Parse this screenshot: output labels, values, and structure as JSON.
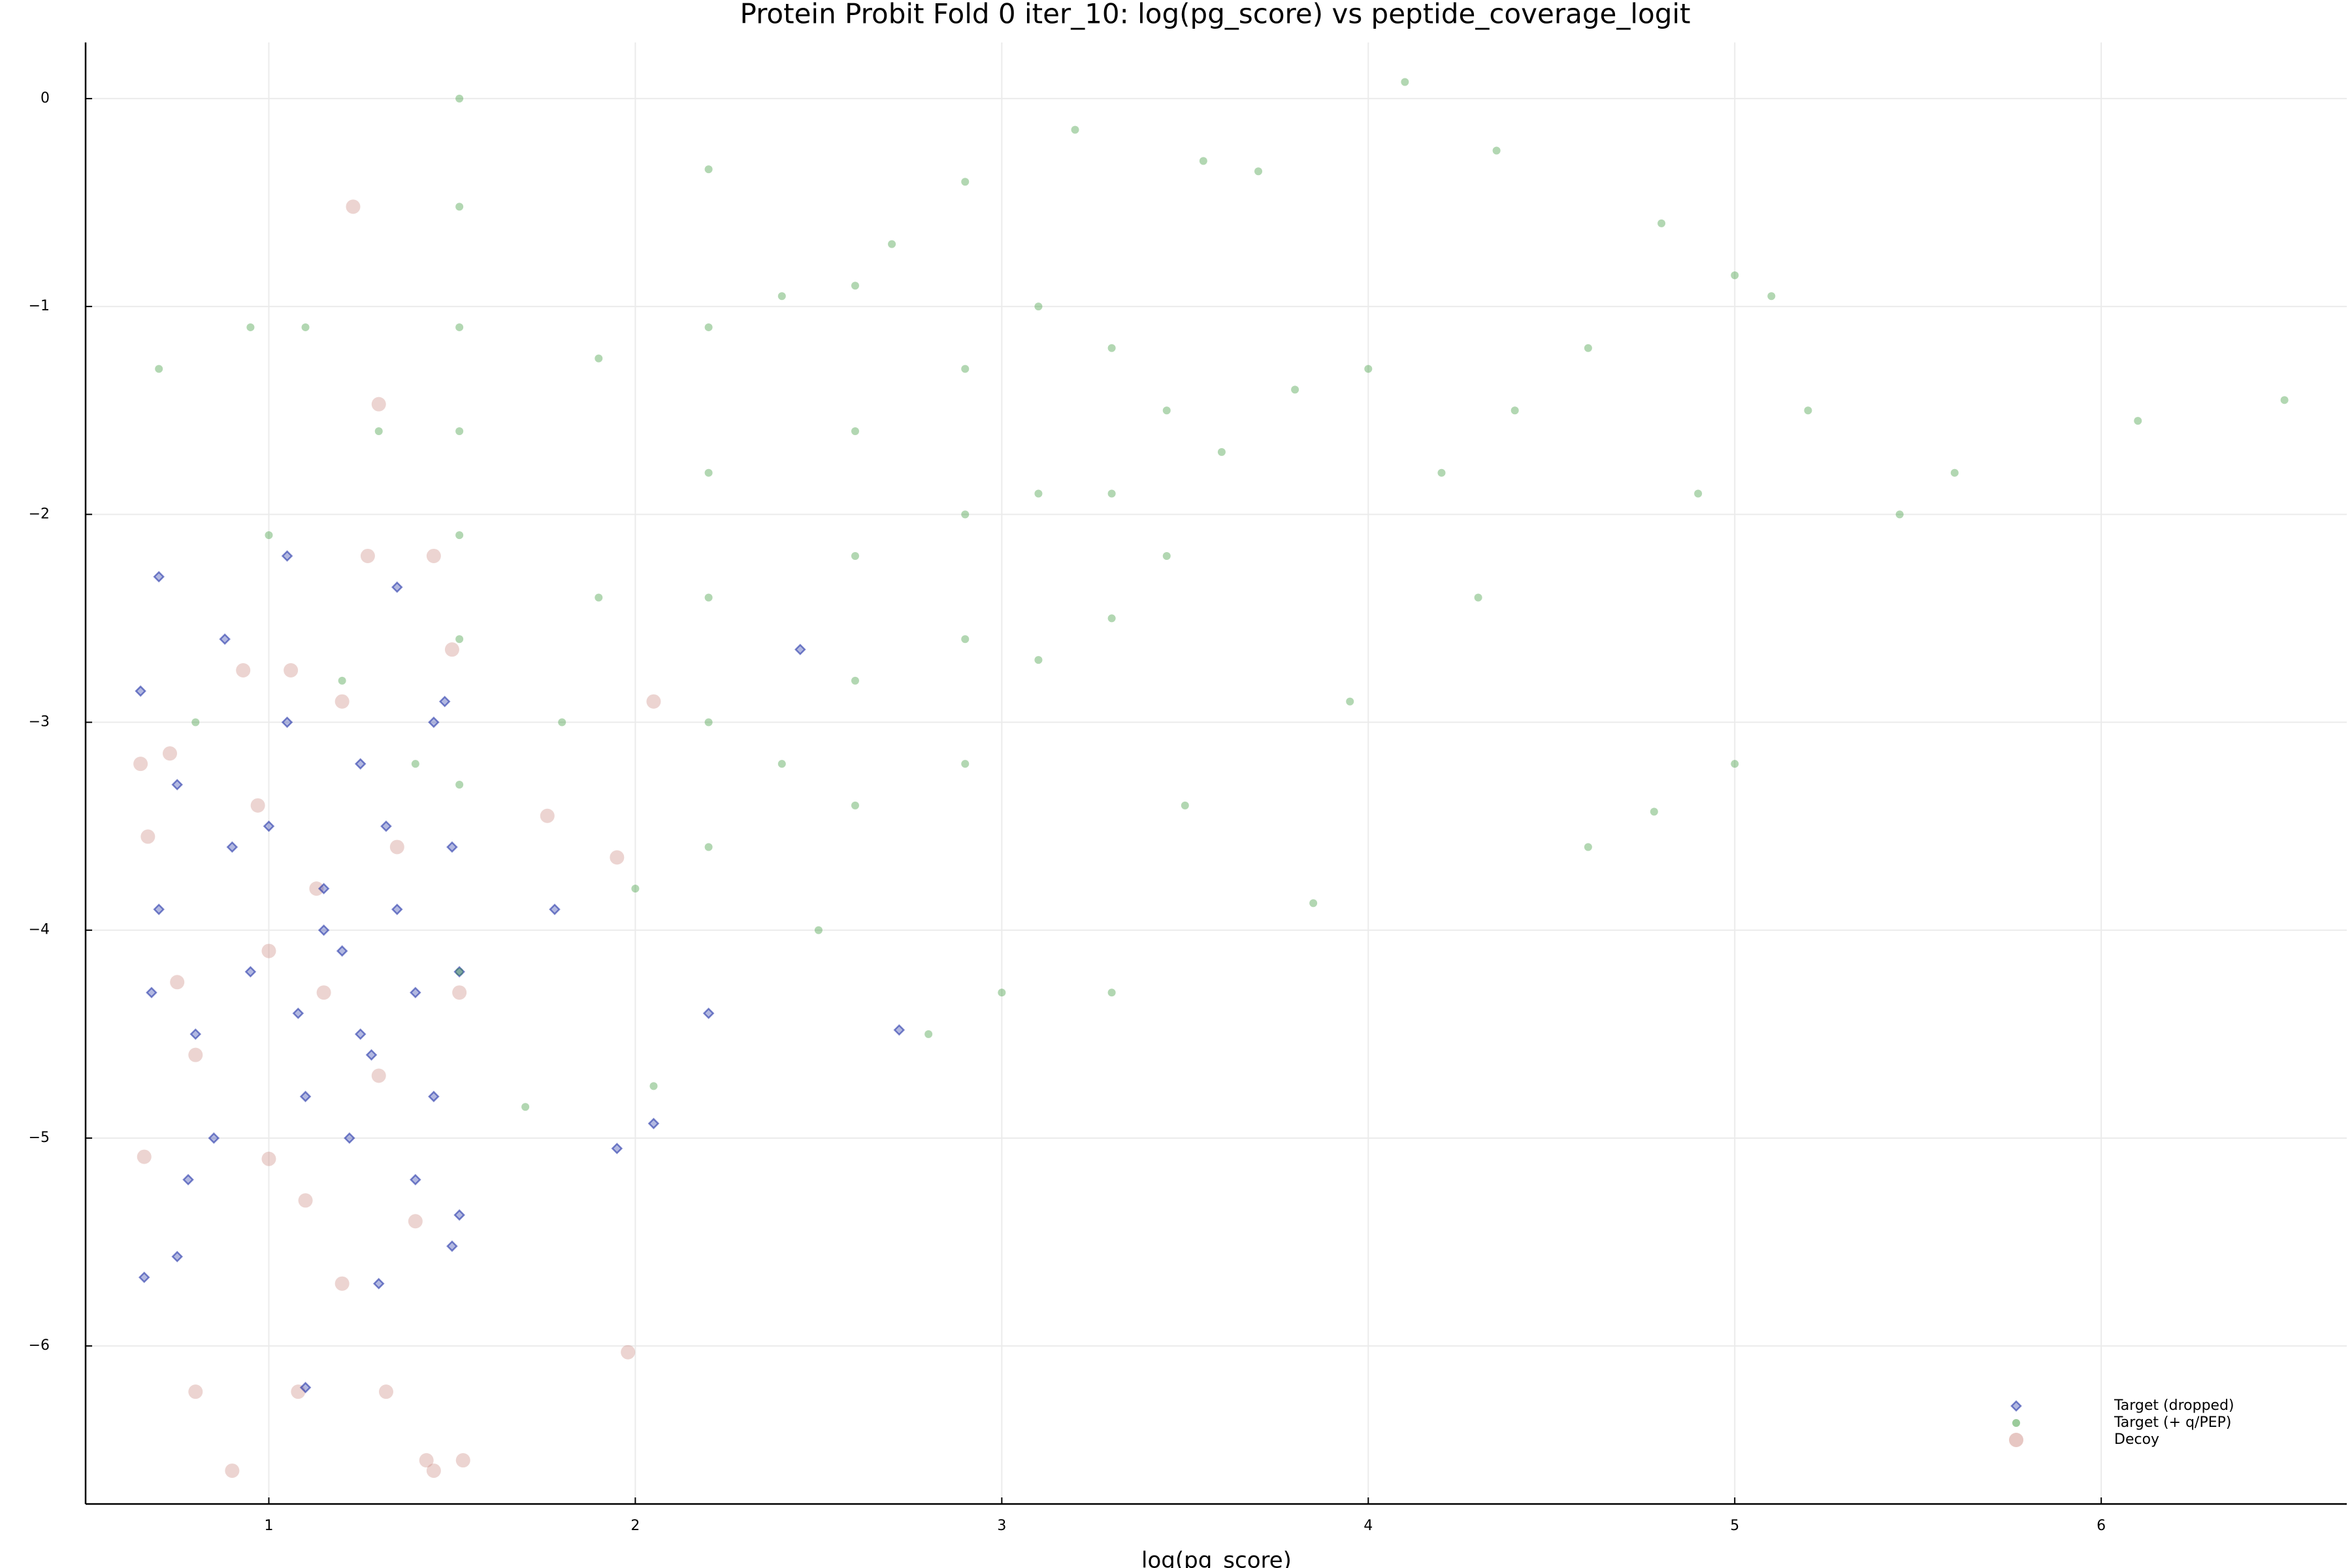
{
  "chart_data": {
    "type": "scatter",
    "title": "Protein Probit Fold 0 iter_10: log(pg_score) vs peptide_coverage_logit",
    "x_label": "log(pg_score)",
    "xlim": [
      0.5,
      6.67
    ],
    "ylim": [
      -6.76,
      0.27
    ],
    "xticks": [
      1,
      2,
      3,
      4,
      5,
      6
    ],
    "yticks": [
      {
        "value": -6,
        "label": "−6"
      },
      {
        "value": -5,
        "label": "−5"
      },
      {
        "value": -4,
        "label": "−4"
      },
      {
        "value": -3,
        "label": "−3"
      },
      {
        "value": -2,
        "label": "−2"
      },
      {
        "value": -1,
        "label": "−1"
      },
      0
    ],
    "grid": true,
    "legend_position": "bottom right",
    "series": [
      {
        "name": "Target (dropped)",
        "color": "#2334a8",
        "marker": "diamond",
        "x": [
          0.7,
          0.65,
          0.75,
          0.7,
          0.68,
          0.8,
          0.85,
          0.78,
          0.66,
          0.75,
          0.9,
          0.95,
          1.0,
          1.05,
          1.08,
          1.1,
          1.1,
          1.15,
          1.2,
          1.22,
          1.25,
          1.28,
          1.3,
          1.35,
          1.35,
          1.4,
          1.4,
          1.45,
          1.45,
          1.48,
          1.5,
          1.52,
          1.52,
          1.5,
          1.78,
          1.95,
          2.05,
          2.2,
          2.45,
          2.72,
          1.15,
          1.25,
          0.88,
          1.05,
          1.32
        ],
        "y": [
          -2.3,
          -2.85,
          -3.3,
          -3.9,
          -4.3,
          -4.5,
          -5.0,
          -5.2,
          -5.67,
          -5.57,
          -3.6,
          -4.2,
          -3.5,
          -2.2,
          -4.4,
          -4.8,
          -6.2,
          -3.8,
          -4.1,
          -5.0,
          -3.2,
          -4.6,
          -5.7,
          -2.35,
          -3.9,
          -4.3,
          -5.2,
          -3.0,
          -4.8,
          -2.9,
          -3.6,
          -4.2,
          -5.37,
          -5.52,
          -3.9,
          -5.05,
          -4.93,
          -4.4,
          -2.65,
          -4.48,
          -4.0,
          -4.5,
          -2.6,
          -3.0,
          -3.5
        ]
      },
      {
        "name": "Target (+ q/PEP)",
        "color": "#228b22",
        "marker": "circle",
        "x": [
          1.52,
          1.52,
          1.52,
          1.52,
          1.52,
          1.52,
          1.52,
          1.52,
          2.2,
          2.2,
          2.2,
          2.2,
          2.2,
          2.2,
          2.6,
          2.6,
          2.6,
          2.6,
          2.6,
          2.9,
          2.9,
          2.9,
          2.9,
          2.9,
          3.1,
          3.1,
          3.1,
          3.3,
          3.3,
          3.3,
          3.45,
          3.45,
          3.6,
          3.8,
          4.0,
          4.1,
          4.2,
          4.35,
          4.4,
          4.6,
          4.8,
          5.0,
          5.1,
          5.45,
          5.6,
          6.1,
          6.5,
          1.8,
          1.9,
          2.0,
          2.05,
          2.4,
          2.5,
          2.8,
          3.0,
          3.3,
          3.5,
          3.85,
          4.6,
          4.78,
          5.0,
          1.0,
          0.7,
          1.1,
          1.3,
          0.95,
          1.2,
          1.4,
          1.7,
          0.8,
          3.7,
          3.55,
          3.2,
          2.4,
          2.7,
          1.9,
          4.9,
          4.3,
          3.95,
          5.2
        ],
        "y": [
          0,
          -0.52,
          -1.1,
          -1.6,
          -2.1,
          -2.6,
          -3.3,
          -4.2,
          -0.34,
          -1.1,
          -1.8,
          -2.4,
          -3.0,
          -3.6,
          -0.9,
          -1.6,
          -2.2,
          -2.8,
          -3.4,
          -0.4,
          -1.3,
          -2.0,
          -2.6,
          -3.2,
          -1.0,
          -1.9,
          -2.7,
          -1.2,
          -1.9,
          -2.5,
          -1.5,
          -2.2,
          -1.7,
          -1.4,
          -1.3,
          0.08,
          -1.8,
          -0.25,
          -1.5,
          -1.2,
          -0.6,
          -0.85,
          -0.95,
          -2.0,
          -1.8,
          -1.55,
          -1.45,
          -3.0,
          -2.4,
          -3.8,
          -4.75,
          -3.2,
          -4.0,
          -4.5,
          -4.3,
          -4.3,
          -3.4,
          -3.87,
          -3.6,
          -3.43,
          -3.2,
          -2.1,
          -1.3,
          -1.1,
          -1.6,
          -1.1,
          -2.8,
          -3.2,
          -4.85,
          -3.0,
          -0.35,
          -0.3,
          -0.15,
          -0.95,
          -0.7,
          -1.25,
          -1.9,
          -2.4,
          -2.9,
          -1.5
        ]
      },
      {
        "name": "Decoy",
        "color": "#c9837b",
        "marker": "circle-large",
        "x": [
          0.65,
          0.67,
          0.66,
          0.73,
          0.75,
          0.8,
          0.9,
          0.93,
          0.97,
          1.0,
          1.0,
          1.06,
          1.08,
          1.1,
          1.13,
          1.15,
          1.2,
          1.23,
          1.27,
          1.3,
          1.32,
          1.3,
          1.35,
          1.43,
          1.45,
          1.53,
          1.45,
          1.5,
          1.52,
          1.98,
          1.76,
          2.05,
          1.95,
          1.2,
          0.8,
          1.4
        ],
        "y": [
          -3.2,
          -3.55,
          -5.09,
          -3.15,
          -4.25,
          -6.22,
          -6.6,
          -2.75,
          -3.4,
          -4.1,
          -5.1,
          -2.75,
          -6.22,
          -5.3,
          -3.8,
          -4.3,
          -5.7,
          -0.52,
          -2.2,
          -1.47,
          -6.22,
          -4.7,
          -3.6,
          -6.55,
          -6.6,
          -6.55,
          -2.2,
          -2.65,
          -4.3,
          -6.03,
          -3.45,
          -2.9,
          -3.65,
          -2.9,
          -4.6,
          -5.4
        ]
      }
    ]
  }
}
